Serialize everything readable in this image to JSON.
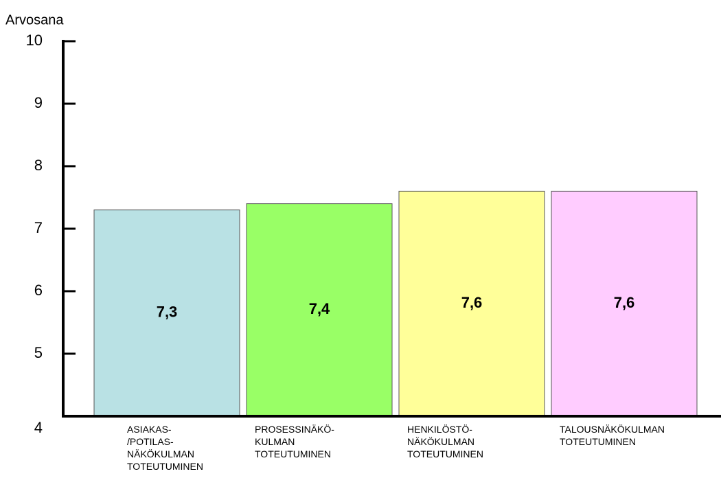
{
  "chart_data": {
    "type": "bar",
    "y_axis_label": "Arvosana",
    "categories": [
      "ASIAKAS-\n/POTILAS-\nNÄKÖKULMAN\nTOTEUTUMINEN",
      "PROSESSINÄKÖ-\nKULMAN\nTOTEUTUMINEN",
      "HENKILÖSTÖ-\nNÄKÖKULMAN\nTOTEUTUMINEN",
      "TALOUSNÄKÖKULMAN\nTOTEUTUMINEN"
    ],
    "values": [
      7.3,
      7.4,
      7.6,
      7.6
    ],
    "value_labels": [
      "7,3",
      "7,4",
      "7,6",
      "7,6"
    ],
    "colors": [
      "#b9e1e4",
      "#99ff66",
      "#ffff99",
      "#ffccff"
    ],
    "ylim": [
      4,
      10
    ],
    "yticks": [
      4,
      5,
      6,
      7,
      8,
      9,
      10
    ],
    "grid": false
  }
}
